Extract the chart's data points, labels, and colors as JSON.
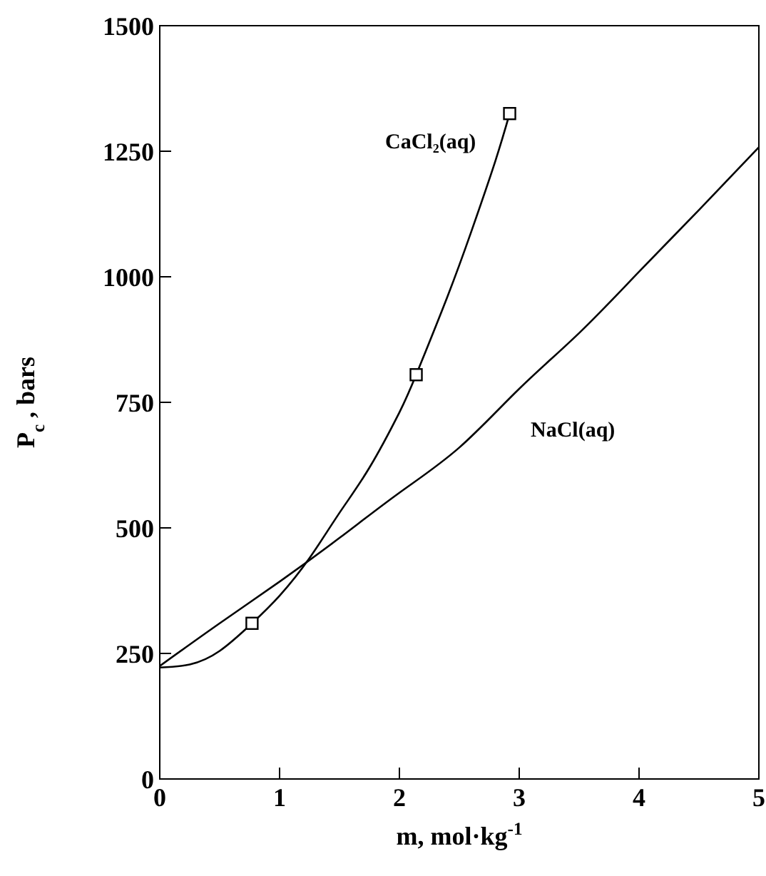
{
  "chart_data": {
    "type": "line",
    "xlabel": "m, mol·kg$^{-1}$",
    "ylabel": "P$_{c}$ , bars",
    "xlim": [
      0,
      5
    ],
    "xticks": [
      0,
      1,
      2,
      3,
      4,
      5
    ],
    "ylim": [
      0,
      1500
    ],
    "yticks": [
      0,
      250,
      500,
      750,
      1000,
      1250,
      1500
    ],
    "grid": false,
    "legend": false,
    "marker": "none",
    "line_style": "solid",
    "series": [
      {
        "name": "CaCl₂(aq)",
        "color": "#000000",
        "x": [
          0,
          0.25,
          0.5,
          0.77,
          1.0,
          1.25,
          1.5,
          1.75,
          2.0,
          2.14,
          2.4,
          2.6,
          2.8,
          2.92
        ],
        "values": [
          222,
          228,
          255,
          310,
          365,
          440,
          530,
          620,
          730,
          805,
          960,
          1090,
          1230,
          1325
        ]
      },
      {
        "name": "NaCl(aq)",
        "color": "#000000",
        "x": [
          0,
          0.5,
          1,
          1.5,
          2,
          2.5,
          3,
          3.5,
          4,
          4.5,
          5
        ],
        "values": [
          225,
          310,
          393,
          480,
          570,
          660,
          777,
          888,
          1010,
          1133,
          1258
        ]
      },
      {
        "color": "#000000",
        "type": "scatter",
        "marker": "square",
        "x": [
          0.77,
          2.14,
          2.92
        ],
        "values": [
          310,
          805,
          1325
        ]
      }
    ]
  }
}
